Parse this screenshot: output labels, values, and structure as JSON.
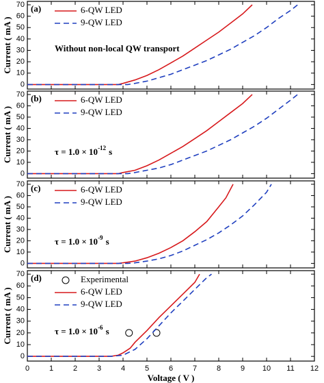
{
  "chart_data": [
    {
      "type": "line",
      "panel_label": "(a)",
      "annotation": [
        "Without non-local QW transport"
      ],
      "ylabel": "Current ( mA )",
      "xlim": [
        0,
        12
      ],
      "ylim": [
        -4,
        73
      ],
      "yticks": [
        0,
        10,
        20,
        30,
        40,
        50,
        60,
        70
      ],
      "series": [
        {
          "name": "6-QW LED",
          "color": "#d7191c",
          "style": "solid",
          "x": [
            0,
            3.5,
            3.8,
            4.0,
            4.5,
            5.0,
            5.5,
            6.0,
            6.5,
            7.0,
            7.5,
            8.0,
            8.5,
            9.0,
            9.4
          ],
          "values": [
            0,
            0,
            0,
            1,
            4,
            8,
            13,
            19,
            25,
            32,
            39,
            46,
            54,
            62,
            70
          ]
        },
        {
          "name": "9-QW LED",
          "color": "#1f3fbf",
          "style": "dashed",
          "x": [
            0,
            4.2,
            4.5,
            5.0,
            5.5,
            6.0,
            6.5,
            7.0,
            7.5,
            8.0,
            8.5,
            9.0,
            9.5,
            10.0,
            10.5,
            11.0,
            11.3
          ],
          "values": [
            0,
            0,
            1,
            3,
            6,
            9,
            13,
            17,
            21,
            26,
            31,
            37,
            43,
            50,
            58,
            65,
            70
          ]
        }
      ]
    },
    {
      "type": "line",
      "panel_label": "(b)",
      "annotation": [
        "τ = 1.0 × 10",
        "-12",
        "s"
      ],
      "ylabel": "Current ( mA )",
      "xlim": [
        0,
        12
      ],
      "ylim": [
        -4,
        73
      ],
      "yticks": [
        0,
        10,
        20,
        30,
        40,
        50,
        60,
        70
      ],
      "series": [
        {
          "name": "6-QW LED",
          "color": "#d7191c",
          "style": "solid",
          "x": [
            0,
            3.5,
            3.8,
            4.0,
            4.5,
            5.0,
            5.5,
            6.0,
            6.5,
            7.0,
            7.5,
            8.0,
            8.5,
            9.0,
            9.4
          ],
          "values": [
            0,
            0,
            0,
            1,
            3,
            7,
            12,
            18,
            24,
            31,
            38,
            46,
            54,
            62,
            70
          ]
        },
        {
          "name": "9-QW LED",
          "color": "#1f3fbf",
          "style": "dashed",
          "x": [
            0,
            4.2,
            4.5,
            5.0,
            5.5,
            6.0,
            6.5,
            7.0,
            7.5,
            8.0,
            8.5,
            9.0,
            9.5,
            10.0,
            10.5,
            11.0,
            11.3
          ],
          "values": [
            0,
            0,
            1,
            3,
            5,
            8,
            12,
            16,
            20,
            25,
            30,
            36,
            42,
            49,
            57,
            65,
            70
          ]
        }
      ]
    },
    {
      "type": "line",
      "panel_label": "(c)",
      "annotation": [
        "τ = 1.0 × 10",
        "-9",
        "s"
      ],
      "ylabel": "Current ( mA )",
      "xlim": [
        0,
        12
      ],
      "ylim": [
        -4,
        73
      ],
      "yticks": [
        0,
        10,
        20,
        30,
        40,
        50,
        60,
        70
      ],
      "series": [
        {
          "name": "6-QW LED",
          "color": "#d7191c",
          "style": "solid",
          "x": [
            0,
            3.5,
            3.8,
            4.0,
            4.5,
            5.0,
            5.5,
            6.0,
            6.5,
            7.0,
            7.5,
            8.0,
            8.3,
            8.6
          ],
          "values": [
            0,
            0,
            0,
            0.5,
            2,
            5,
            9,
            14,
            20,
            28,
            37,
            50,
            58,
            70
          ]
        },
        {
          "name": "9-QW LED",
          "color": "#1f3fbf",
          "style": "dashed",
          "x": [
            0,
            4.2,
            4.5,
            5.0,
            5.5,
            6.0,
            6.5,
            7.0,
            7.5,
            8.0,
            8.5,
            9.0,
            9.5,
            10.0,
            10.2
          ],
          "values": [
            0,
            0,
            0.5,
            2,
            4,
            7,
            11,
            16,
            21,
            27,
            34,
            42,
            52,
            63,
            70
          ]
        }
      ]
    },
    {
      "type": "line",
      "panel_label": "(d)",
      "annotation": [
        "τ = 1.0 × 10",
        "-6",
        "s"
      ],
      "ylabel": "Current ( mA )",
      "xlabel": "Voltage ( V )",
      "xlim": [
        0,
        12
      ],
      "ylim": [
        -4,
        73
      ],
      "yticks": [
        0,
        10,
        20,
        30,
        40,
        50,
        60,
        70
      ],
      "xticks": [
        0,
        1,
        2,
        3,
        4,
        5,
        6,
        7,
        8,
        9,
        10,
        11,
        12
      ],
      "series": [
        {
          "name": "Experimental",
          "color": "#000000",
          "style": "open-circle",
          "x": [
            4.25,
            5.4
          ],
          "values": [
            20,
            20
          ]
        },
        {
          "name": "6-QW LED",
          "color": "#d7191c",
          "style": "solid",
          "x": [
            0,
            3.5,
            3.8,
            4.0,
            4.3,
            4.5,
            5.0,
            5.5,
            6.0,
            6.5,
            7.0,
            7.2
          ],
          "values": [
            0,
            0,
            1,
            3,
            7,
            12,
            22,
            33,
            43,
            53,
            63,
            70
          ]
        },
        {
          "name": "9-QW LED",
          "color": "#1f3fbf",
          "style": "dashed",
          "x": [
            0,
            3.5,
            4.0,
            4.5,
            5.0,
            5.5,
            6.0,
            6.5,
            7.0,
            7.5,
            7.7
          ],
          "values": [
            0,
            0,
            1,
            6,
            15,
            26,
            37,
            47,
            57,
            67,
            70
          ]
        }
      ]
    }
  ]
}
